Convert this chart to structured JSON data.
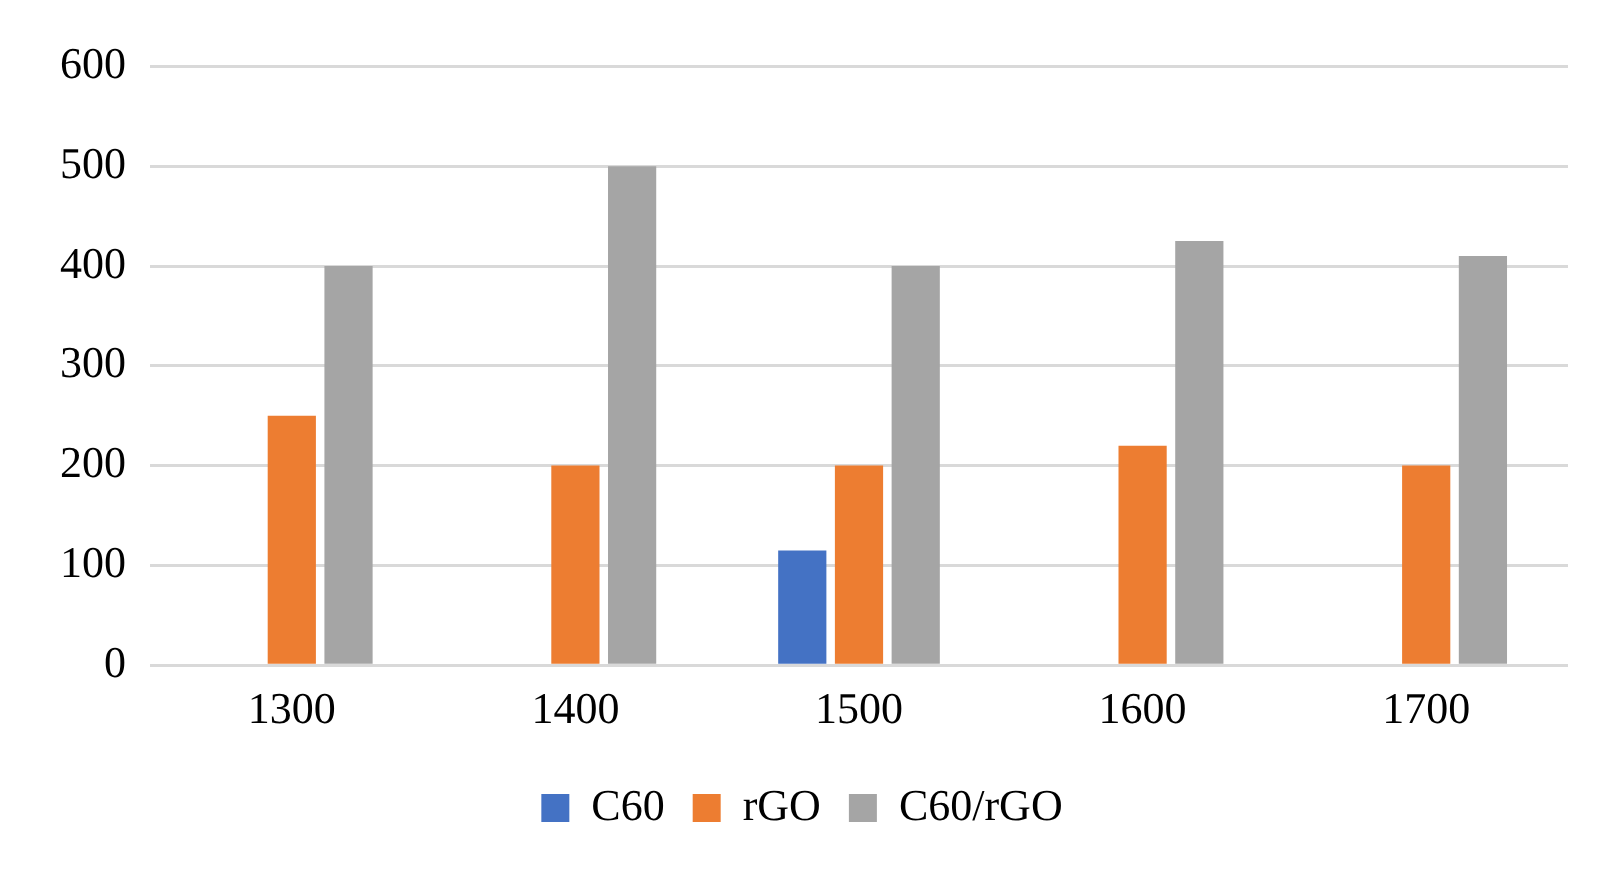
{
  "chart_data": {
    "type": "bar",
    "categories": [
      "1300",
      "1400",
      "1500",
      "1600",
      "1700"
    ],
    "series": [
      {
        "name": "C60",
        "color": "#4472c4",
        "values": [
          null,
          null,
          115,
          null,
          null
        ]
      },
      {
        "name": "rGO",
        "color": "#ed7d31",
        "values": [
          250,
          200,
          200,
          220,
          200
        ]
      },
      {
        "name": "C60/rGO",
        "color": "#a5a5a5",
        "values": [
          400,
          500,
          400,
          425,
          410
        ]
      }
    ],
    "ylim": [
      0,
      600
    ],
    "yticks": [
      0,
      100,
      200,
      300,
      400,
      500,
      600
    ],
    "grid": "y",
    "legend": "bottom"
  }
}
